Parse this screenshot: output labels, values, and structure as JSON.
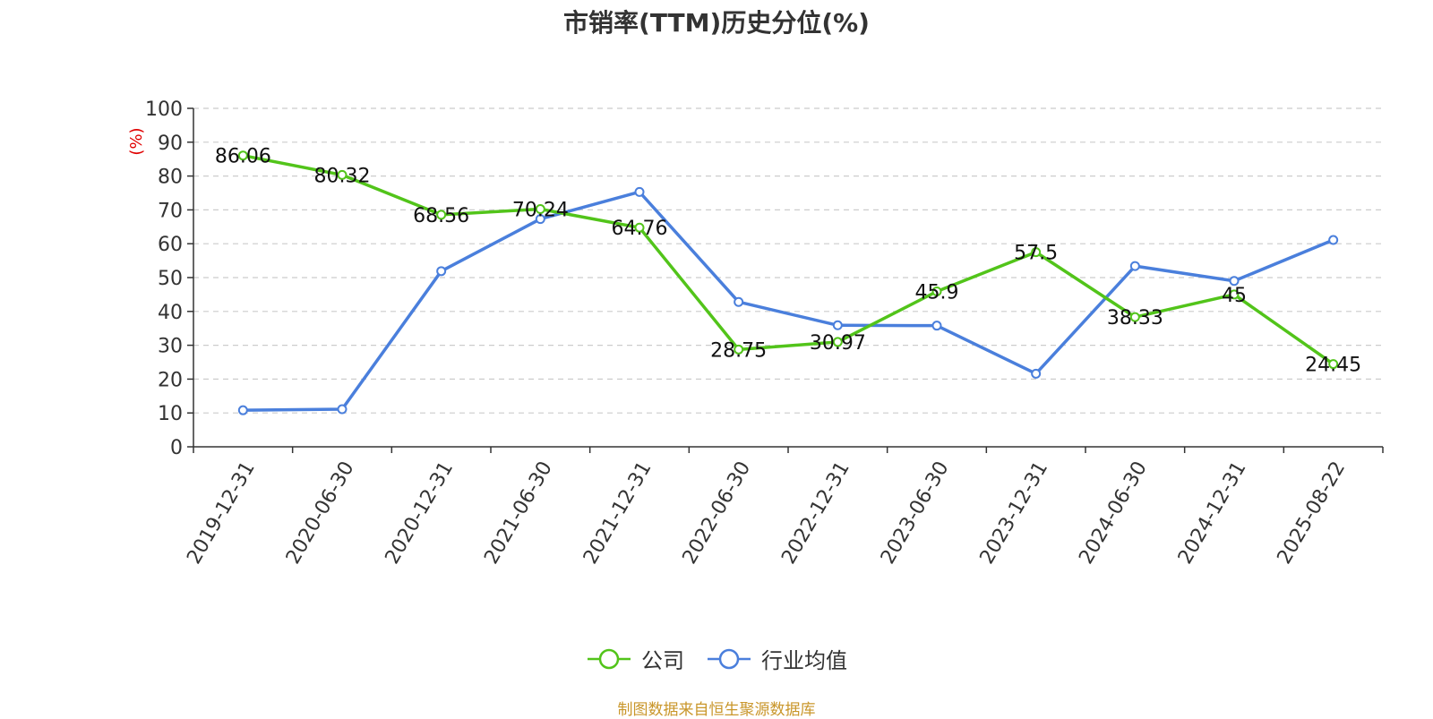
{
  "chart_data": {
    "type": "line",
    "title": "市销率(TTM)历史分位(%)",
    "ylabel": "(%)",
    "ylim": [
      0,
      100
    ],
    "yticks": [
      0,
      10,
      20,
      30,
      40,
      50,
      60,
      70,
      80,
      90,
      100
    ],
    "x_ticks": [
      "2019-12-31",
      "2020-06-30",
      "2020-12-31",
      "2021-06-30",
      "2021-12-31",
      "2022-06-30",
      "2022-12-31",
      "2023-06-30",
      "2023-12-31",
      "2024-06-30",
      "2024-12-31",
      "2025-08-22"
    ],
    "grid": true,
    "legend_position": "bottom",
    "series": [
      {
        "name": "公司",
        "color": "#52c41a",
        "values": [
          86.06,
          80.32,
          68.56,
          70.24,
          64.76,
          28.75,
          30.97,
          45.9,
          57.5,
          38.33,
          45,
          24.45
        ],
        "labels": [
          "86.06",
          "80.32",
          "68.56",
          "70.24",
          "64.76",
          "28.75",
          "30.97",
          "45.9",
          "57.5",
          "38.33",
          "45",
          "24.45"
        ]
      },
      {
        "name": "行业均值",
        "color": "#4a7fdc",
        "values": [
          10.8,
          11.1,
          51.9,
          67.3,
          75.3,
          42.8,
          35.9,
          35.8,
          21.6,
          53.4,
          49.0,
          61.1
        ]
      }
    ]
  },
  "source": "制图数据来自恒生聚源数据库"
}
